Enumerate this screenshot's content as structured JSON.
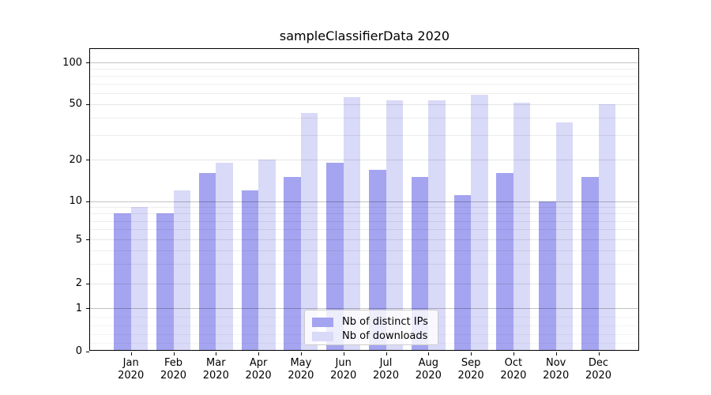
{
  "title": "sampleClassifierData 2020",
  "chart_data": {
    "type": "bar",
    "title": "sampleClassifierData 2020",
    "categories": [
      "Jan 2020",
      "Feb 2020",
      "Mar 2020",
      "Apr 2020",
      "May 2020",
      "Jun 2020",
      "Jul 2020",
      "Aug 2020",
      "Sep 2020",
      "Oct 2020",
      "Nov 2020",
      "Dec 2020"
    ],
    "series": [
      {
        "name": "Nb of distinct IPs",
        "color": "#a4a4f0",
        "values": [
          8,
          8,
          16,
          12,
          15,
          19,
          17,
          15,
          11,
          16,
          10,
          15
        ]
      },
      {
        "name": "Nb of downloads",
        "color": "#d9d9f8",
        "values": [
          9,
          12,
          19,
          20,
          43,
          56,
          53,
          53,
          58,
          51,
          37,
          50
        ]
      }
    ],
    "xlabel": "",
    "ylabel": "",
    "y_ticks": [
      0,
      1,
      2,
      5,
      10,
      20,
      50,
      100
    ],
    "yscale": "symlog",
    "ylim": [
      0,
      127
    ],
    "grid": "on",
    "legend_position": "lower center",
    "colors": {
      "bar_dark": "#a4a4f0",
      "bar_light": "#d9d9f8",
      "major_grid": "#c4c4c4",
      "minor_grid": "#ebebeb",
      "spine": "#000000",
      "text": "#000000",
      "legend_border": "#cccccc"
    }
  }
}
